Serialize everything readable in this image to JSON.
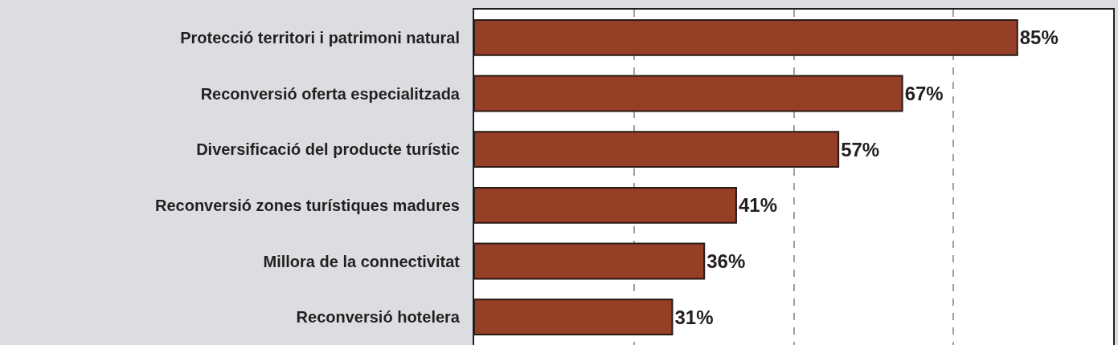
{
  "chart_data": {
    "type": "bar",
    "orientation": "horizontal",
    "categories": [
      "Protecció territori i patrimoni natural",
      "Reconversió oferta especialitzada",
      "Diversificació del producte turístic",
      "Reconversió zones turístiques madures",
      "Millora de la connectivitat",
      "Reconversió hotelera"
    ],
    "values": [
      85,
      67,
      57,
      41,
      36,
      31
    ],
    "value_labels": [
      "85%",
      "67%",
      "57%",
      "41%",
      "36%",
      "31%"
    ],
    "color": "#943f26",
    "xlim": [
      0,
      100
    ],
    "xticks": [
      {
        "value": 0,
        "label": null
      },
      {
        "value": 25,
        "label": null
      },
      {
        "value": 50,
        "label": null
      },
      {
        "value": 75,
        "label": null
      },
      {
        "value": 100,
        "label": null
      }
    ],
    "grid": "x",
    "tick_labels": "y"
  }
}
